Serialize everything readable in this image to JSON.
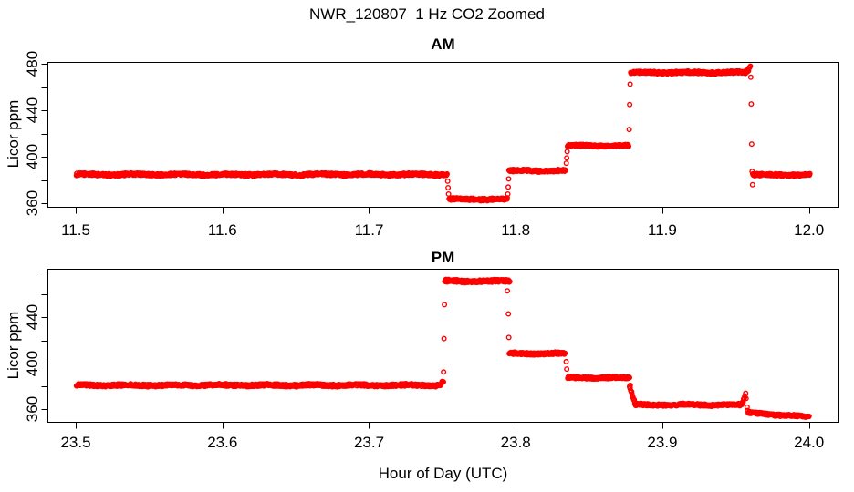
{
  "main_title": "NWR_120807  1 Hz CO2 Zoomed",
  "point_color": "#FF0000",
  "axis_color": "#000000",
  "background_color": "#FFFFFF",
  "chart_data": [
    {
      "type": "scatter",
      "title": "AM",
      "ylabel": "Licor ppm",
      "xlabel": "",
      "marker": "open-circle",
      "grid": false,
      "xlim": [
        11.4807,
        12.0201
      ],
      "ylim": [
        357.0,
        481.6
      ],
      "x_tick_values": [
        11.5,
        11.6,
        11.7,
        11.8,
        11.9,
        12.0
      ],
      "x_tick_labels": [
        "11.5",
        "11.6",
        "11.7",
        "11.8",
        "11.9",
        "12.0"
      ],
      "y_tick_values": [
        360,
        380,
        400,
        420,
        440,
        460,
        480
      ],
      "y_tick_labels": [
        "360",
        "",
        "400",
        "",
        "440",
        "",
        "480"
      ],
      "sample_interval_hours": 0.000278,
      "segments": [
        {
          "t0": 11.5005,
          "t1": 11.7532,
          "v": 384.8,
          "noise": 1.0
        },
        {
          "t0": 11.7545,
          "t1": 11.7943,
          "v": 363.5,
          "noise": 1.0
        },
        {
          "t0": 11.7955,
          "t1": 11.8341,
          "v": 388.0,
          "noise": 0.9
        },
        {
          "t0": 11.8354,
          "t1": 11.8771,
          "v": 409.5,
          "noise": 0.9
        },
        {
          "t0": 11.8783,
          "t1": 11.957,
          "v": 472.5,
          "noise": 1.0
        },
        {
          "t0": 11.957,
          "t1": 11.96,
          "v0": 473.0,
          "v1": 477.0,
          "noise": 1.4
        },
        {
          "t0": 11.9617,
          "t1": 12.0005,
          "v": 384.5,
          "noise": 1.0
        }
      ],
      "transition_points": [
        {
          "t": 11.7536,
          "v": 379.0
        },
        {
          "t": 11.7539,
          "v": 373.5
        },
        {
          "t": 11.7542,
          "v": 368.0
        },
        {
          "t": 11.7946,
          "v": 368.0
        },
        {
          "t": 11.7949,
          "v": 374.0
        },
        {
          "t": 11.7952,
          "v": 381.0
        },
        {
          "t": 11.8345,
          "v": 394.5
        },
        {
          "t": 11.8348,
          "v": 399.0
        },
        {
          "t": 11.8351,
          "v": 404.5
        },
        {
          "t": 11.8774,
          "v": 423.5
        },
        {
          "t": 11.8777,
          "v": 445.0
        },
        {
          "t": 11.878,
          "v": 462.5
        },
        {
          "t": 11.9603,
          "v": 468.5
        },
        {
          "t": 11.9606,
          "v": 445.5
        },
        {
          "t": 11.9609,
          "v": 411.0
        },
        {
          "t": 11.9612,
          "v": 387.5
        },
        {
          "t": 11.9615,
          "v": 376.0
        }
      ]
    },
    {
      "type": "scatter",
      "title": "PM",
      "ylabel": "Licor ppm",
      "xlabel": "Hour of Day (UTC)",
      "marker": "open-circle",
      "grid": false,
      "xlim": [
        23.4807,
        24.0201
      ],
      "ylim": [
        349.2,
        482.2
      ],
      "x_tick_values": [
        23.5,
        23.6,
        23.7,
        23.8,
        23.9,
        24.0
      ],
      "x_tick_labels": [
        "23.5",
        "23.6",
        "23.7",
        "23.8",
        "23.9",
        "24.0"
      ],
      "y_tick_values": [
        360,
        380,
        400,
        420,
        440,
        460,
        480
      ],
      "y_tick_labels": [
        "360",
        "",
        "400",
        "",
        "440",
        "",
        ""
      ],
      "sample_interval_hours": 0.000278,
      "segments": [
        {
          "t0": 23.5005,
          "t1": 23.749,
          "v": 381.0,
          "noise": 1.0
        },
        {
          "t0": 23.749,
          "t1": 23.7506,
          "v0": 381.5,
          "v1": 384.5,
          "noise": 1.2
        },
        {
          "t0": 23.7516,
          "t1": 23.796,
          "v": 471.5,
          "noise": 1.1
        },
        {
          "t0": 23.7956,
          "t1": 23.8336,
          "v": 408.5,
          "noise": 0.9
        },
        {
          "t0": 23.8354,
          "t1": 23.8777,
          "v": 387.5,
          "noise": 0.9
        },
        {
          "t0": 23.8777,
          "t1": 23.8814,
          "v0": 379.0,
          "v1": 365.5,
          "noise": 1.3
        },
        {
          "t0": 23.8814,
          "t1": 23.9542,
          "v": 364.0,
          "noise": 0.9
        },
        {
          "t0": 23.9542,
          "t1": 23.9565,
          "v0": 364.5,
          "v1": 371.0,
          "noise": 1.2
        },
        {
          "t0": 23.9585,
          "t1": 24.0,
          "v0": 357.0,
          "v1": 353.5,
          "noise": 0.9
        }
      ],
      "transition_points": [
        {
          "t": 23.7508,
          "v": 392.5
        },
        {
          "t": 23.7511,
          "v": 421.5
        },
        {
          "t": 23.7514,
          "v": 451.0
        },
        {
          "t": 23.7943,
          "v": 463.0
        },
        {
          "t": 23.795,
          "v": 443.0
        },
        {
          "t": 23.7953,
          "v": 422.5
        },
        {
          "t": 23.8344,
          "v": 401.5
        },
        {
          "t": 23.8348,
          "v": 395.0
        },
        {
          "t": 23.8781,
          "v": 381.0
        },
        {
          "t": 23.9568,
          "v": 374.0
        },
        {
          "t": 23.9571,
          "v": 369.5
        },
        {
          "t": 23.9578,
          "v": 362.0
        },
        {
          "t": 23.9581,
          "v": 359.0
        }
      ]
    }
  ]
}
